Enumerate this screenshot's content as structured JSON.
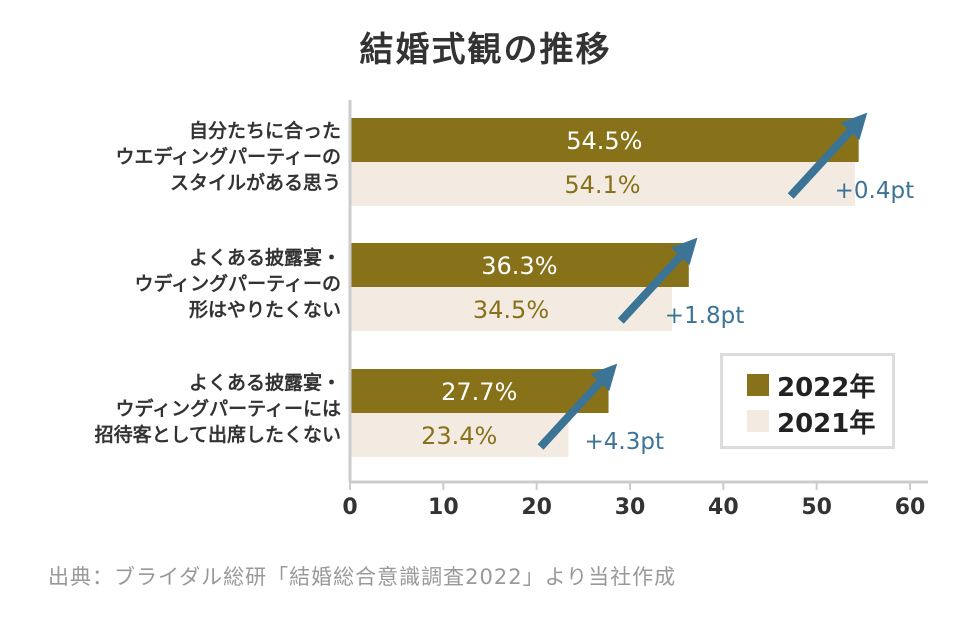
{
  "title": "結婚式観の推移",
  "source": "出典：ブライダル総研「結婚総合意識調査2022」より当社作成",
  "colors": {
    "series_2022": "#87721a",
    "series_2021": "#f3ebe2",
    "arrow": "#3c7496",
    "axis": "#cccccc",
    "label_2022": "#ffffff",
    "label_2021": "#87721a"
  },
  "legend": {
    "items": [
      "2022年",
      "2021年"
    ]
  },
  "chart_data": {
    "type": "bar",
    "orientation": "horizontal",
    "title": "結婚式観の推移",
    "categories": [
      [
        "自分たちに合った",
        "ウエディングパーティーの",
        "スタイルがある思う"
      ],
      [
        "よくある披露宴・",
        "ウディングパーティーの",
        "形はやりたくない"
      ],
      [
        "よくある披露宴・",
        "ウディングパーティーには",
        "招待客として出席したくない"
      ]
    ],
    "series": [
      {
        "name": "2022年",
        "values": [
          54.5,
          36.3,
          27.7
        ],
        "labels": [
          "54.5%",
          "36.3%",
          "27.7%"
        ]
      },
      {
        "name": "2021年",
        "values": [
          54.1,
          34.5,
          23.4
        ],
        "labels": [
          "54.1%",
          "34.5%",
          "23.4%"
        ]
      }
    ],
    "annotations": [
      "+0.4pt",
      "+1.8pt",
      "+4.3pt"
    ],
    "xlim": [
      0,
      60
    ],
    "xticks": [
      "0",
      "10",
      "20",
      "30",
      "40",
      "50",
      "60"
    ],
    "legend_position": "bottom-right",
    "grid": false
  }
}
